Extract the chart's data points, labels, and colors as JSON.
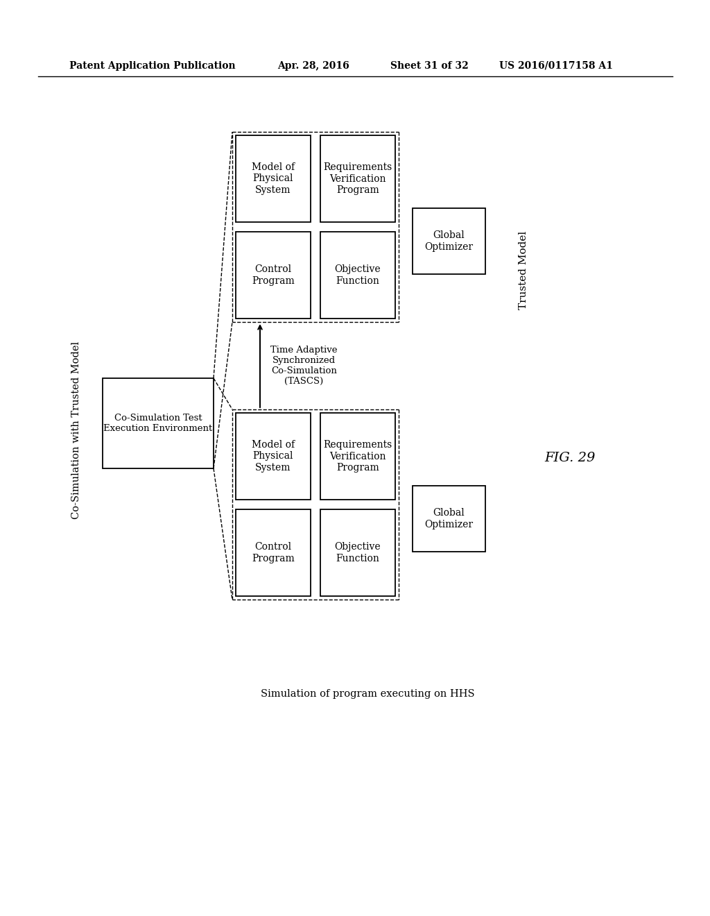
{
  "bg_color": "#ffffff",
  "header_text": "Patent Application Publication",
  "header_date": "Apr. 28, 2016",
  "header_sheet": "Sheet 31 of 32",
  "header_patent": "US 2016/0117158 A1",
  "fig_label": "FIG. 29",
  "left_label": "Co-Simulation with Trusted Model",
  "bottom_label": "Simulation of program executing on HHS",
  "right_top_label": "Trusted Model",
  "center_box_label": "Co-Simulation Test\nExecution Environment",
  "tascs_label": "Time Adaptive\nSynchronized\nCo-Simulation\n(TASCS)",
  "global_optimizer": "Global\nOptimizer",
  "top_left_box": "Model of\nPhysical\nSystem",
  "top_right_box": "Requirements\nVerification\nProgram",
  "mid_left_box": "Control\nProgram",
  "mid_right_box": "Objective\nFunction"
}
